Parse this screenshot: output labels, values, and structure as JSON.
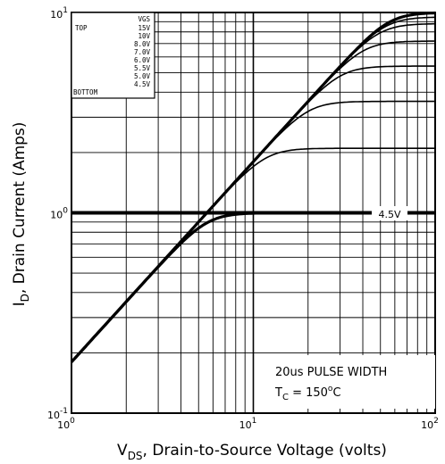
{
  "chart_data": {
    "type": "line",
    "x_scale": "log",
    "y_scale": "log",
    "xlim": [
      1,
      100
    ],
    "ylim": [
      0.1,
      10
    ],
    "grid": true,
    "x_ticks": [
      {
        "base": "10",
        "exp": "0"
      },
      {
        "base": "10",
        "exp": "1"
      },
      {
        "base": "10",
        "exp": "2"
      }
    ],
    "y_ticks": [
      {
        "base": "10",
        "exp": "-1"
      },
      {
        "base": "10",
        "exp": "0"
      },
      {
        "base": "10",
        "exp": "1"
      }
    ],
    "xlabel": {
      "main": "V",
      "sub": "DS",
      "rest": ", Drain-to-Source Voltage (volts)"
    },
    "ylabel": {
      "main": "I",
      "sub": "D",
      "rest": ", Drain Current (Amps)"
    },
    "legend": {
      "header": "VGS",
      "top_label": "TOP",
      "bottom_label": "BOTTOM",
      "placement": "top-left",
      "entries": [
        "15V",
        "10V",
        "8.0V",
        "7.0V",
        "6.0V",
        "5.5V",
        "5.0V",
        "4.5V"
      ]
    },
    "annotation": {
      "line1": "20us PULSE WIDTH",
      "line2_pre": "T",
      "line2_sub": "C",
      "line2_mid": " = 150",
      "line2_sup": "o",
      "line2_post": "C"
    },
    "curve_label": "4.5V",
    "linear_slope": 0.18,
    "series": [
      {
        "name": "15V",
        "sat": 10.0
      },
      {
        "name": "10V",
        "sat": 9.5
      },
      {
        "name": "8.0V",
        "sat": 8.8
      },
      {
        "name": "7.0V",
        "sat": 7.2
      },
      {
        "name": "6.0V",
        "sat": 5.4
      },
      {
        "name": "5.5V",
        "sat": 3.6
      },
      {
        "name": "5.0V",
        "sat": 2.1
      },
      {
        "name": "4.5V",
        "sat": 1.0
      }
    ]
  }
}
